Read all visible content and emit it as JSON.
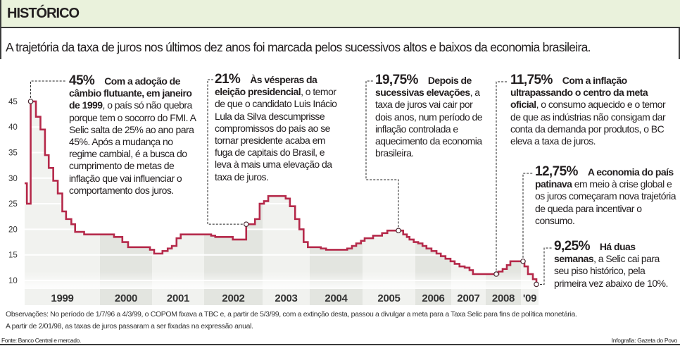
{
  "header": {
    "title": "HISTÓRICO"
  },
  "subtitle": "A trajetória da taxa de juros nos últimos dez anos foi marcada pelos sucessivos altos e baixos da economia brasileira.",
  "colors": {
    "line": "#b5294a",
    "header_bg": "#eaf2dc",
    "band_light": "#f1f2ef",
    "band_dark": "#e3e5e0"
  },
  "chart_data": {
    "type": "line",
    "step": true,
    "title": "",
    "xlabel": "",
    "ylabel": "",
    "ylim": [
      8,
      47
    ],
    "y_ticks": [
      10,
      15,
      20,
      25,
      30,
      35,
      40,
      45
    ],
    "y_tick_labels": [
      "10",
      "15",
      "20",
      "25",
      "30",
      "35",
      "40",
      "45"
    ],
    "x_bands": [
      "1999",
      "2000",
      "2001",
      "2002",
      "2003",
      "2004",
      "2005",
      "2006",
      "2007",
      "2008",
      "'09"
    ],
    "grid": true,
    "series": [
      {
        "points": [
          [
            1999.0,
            29
          ],
          [
            1999.03,
            25
          ],
          [
            1999.08,
            45
          ],
          [
            1999.15,
            42
          ],
          [
            1999.21,
            39.5
          ],
          [
            1999.27,
            34.5
          ],
          [
            1999.32,
            32
          ],
          [
            1999.38,
            29.5
          ],
          [
            1999.44,
            27
          ],
          [
            1999.5,
            23.5
          ],
          [
            1999.55,
            22
          ],
          [
            1999.62,
            21
          ],
          [
            1999.67,
            19.5
          ],
          [
            1999.79,
            19
          ],
          [
            2000.27,
            18.5
          ],
          [
            2000.43,
            17.5
          ],
          [
            2000.54,
            16.5
          ],
          [
            2000.96,
            16
          ],
          [
            2001.04,
            15.25
          ],
          [
            2001.2,
            15.75
          ],
          [
            2001.3,
            16.25
          ],
          [
            2001.38,
            16.75
          ],
          [
            2001.47,
            18.25
          ],
          [
            2001.55,
            19
          ],
          [
            2002.12,
            18.75
          ],
          [
            2002.19,
            18.5
          ],
          [
            2002.49,
            18
          ],
          [
            2002.72,
            21
          ],
          [
            2002.87,
            22
          ],
          [
            2002.95,
            25
          ],
          [
            2003.03,
            25.5
          ],
          [
            2003.12,
            26.5
          ],
          [
            2003.49,
            26
          ],
          [
            2003.58,
            24.5
          ],
          [
            2003.69,
            22
          ],
          [
            2003.78,
            20
          ],
          [
            2003.87,
            17.5
          ],
          [
            2003.96,
            16.5
          ],
          [
            2004.21,
            16.25
          ],
          [
            2004.31,
            16
          ],
          [
            2004.71,
            16.25
          ],
          [
            2004.8,
            16.75
          ],
          [
            2004.88,
            17.25
          ],
          [
            2004.97,
            17.75
          ],
          [
            2005.04,
            18.25
          ],
          [
            2005.2,
            18.75
          ],
          [
            2005.37,
            19.25
          ],
          [
            2005.47,
            19.75
          ],
          [
            2005.77,
            19
          ],
          [
            2005.84,
            18.5
          ],
          [
            2005.89,
            18
          ],
          [
            2005.97,
            17.5
          ],
          [
            2006.08,
            17.25
          ],
          [
            2006.2,
            16.75
          ],
          [
            2006.31,
            16.25
          ],
          [
            2006.45,
            15.75
          ],
          [
            2006.59,
            15.25
          ],
          [
            2006.71,
            14.75
          ],
          [
            2006.84,
            14.25
          ],
          [
            2006.98,
            13.75
          ],
          [
            2007.1,
            13.25
          ],
          [
            2007.24,
            12.75
          ],
          [
            2007.39,
            12.5
          ],
          [
            2007.53,
            12
          ],
          [
            2007.63,
            11.25
          ],
          [
            2008.36,
            11.75
          ],
          [
            2008.48,
            12.25
          ],
          [
            2008.6,
            13
          ],
          [
            2008.7,
            13.75
          ],
          [
            2009.1,
            12.75
          ],
          [
            2009.2,
            11.25
          ],
          [
            2009.34,
            10.25
          ],
          [
            2009.44,
            9.25
          ]
        ],
        "x_end": 2009.5
      }
    ],
    "annotations": [
      {
        "x": 1999.08,
        "y": 45,
        "value": "45%",
        "lead": "Com a adoção de câmbio flutuante, em janeiro de 1999",
        "text": ", o país só não quebra porque tem o socorro do FMI. A Selic salta de 25% ao ano para 45%. Após a mudança no regime cambial, é a busca do cumprimento de metas de inflação que vai influenciar o comportamento dos juros."
      },
      {
        "x": 2002.72,
        "y": 21,
        "value": "21%",
        "lead": "Às vésperas da eleição presidencial",
        "text": ", o temor de que o candidato Luis Inácio Lula da Silva descumprisse compromissos do país ao se tornar presidente acaba em fuga de capitais do Brasil, e leva à mais uma elevação da taxa de juros."
      },
      {
        "x": 2005.68,
        "y": 19.75,
        "value": "19,75%",
        "lead": "Depois de sucessivas elevações",
        "text": ", a taxa de juros vai cair por dois anos, num período de inflação controlada e aquecimento da economia brasileira."
      },
      {
        "x": 2008.3,
        "y": 11.25,
        "value": "11,75%",
        "lead": "Com a inflação ultrapassando o centro da meta oficial",
        "text": ", o consumo aquecido e o temor de que as indústrias não consigam dar conta da demanda por produtos, o BC eleva a taxa de juros."
      },
      {
        "x": 2009.06,
        "y": 13.75,
        "value": "12,75%",
        "lead": "A economia do país patinava",
        "text": " em meio à crise global e os juros começaram nova trajetória de queda para incentivar o consumo."
      },
      {
        "x": 2009.44,
        "y": 9.25,
        "value": "9,25%",
        "lead": "Há duas semanas",
        "text": ", a Selic cai para seu piso histórico, pela primeira vez abaixo de 10%."
      }
    ]
  },
  "notes": [
    "Observações: No período de 1/7/96 a 4/3/99, o COPOM fixava a TBC e, a partir de 5/3/99, com a extinção desta, passou a divulgar a meta para a Taxa Selic para fins de política monetária.",
    "A partir de 2/01/98, as taxas de juros passaram a ser fixadas na expressão anual."
  ],
  "source": "Fonte: Banco Central e mercado.",
  "credit": "Infografia: Gazeta do Povo"
}
